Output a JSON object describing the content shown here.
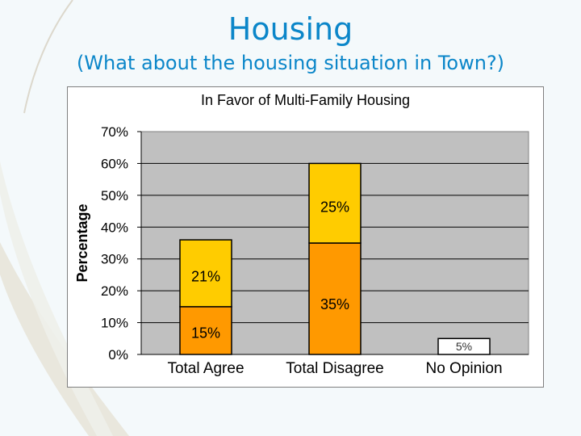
{
  "slide": {
    "title": "Housing",
    "subtitle": "(What about the housing situation in Town?)"
  },
  "colors": {
    "title": "#0b86c9",
    "plot_background": "#c0c0c0",
    "bottom_segment": "#ff9900",
    "top_segment": "#ffcc00",
    "single_segment": "#ffffff"
  },
  "chart_data": {
    "type": "bar",
    "stacked": true,
    "title": "In Favor of Multi-Family Housing",
    "xlabel": "",
    "ylabel": "Percentage",
    "ylim": [
      0,
      70
    ],
    "yticks": [
      "0%",
      "10%",
      "20%",
      "30%",
      "40%",
      "50%",
      "60%",
      "70%"
    ],
    "grid": true,
    "categories": [
      "Total Agree",
      "Total Disagree",
      "No Opinion"
    ],
    "series": [
      {
        "values": [
          15,
          35,
          5
        ],
        "labels": [
          "15%",
          "35%",
          "5%"
        ]
      },
      {
        "values": [
          21,
          25,
          0
        ],
        "labels": [
          "21%",
          "25%",
          ""
        ]
      }
    ]
  }
}
